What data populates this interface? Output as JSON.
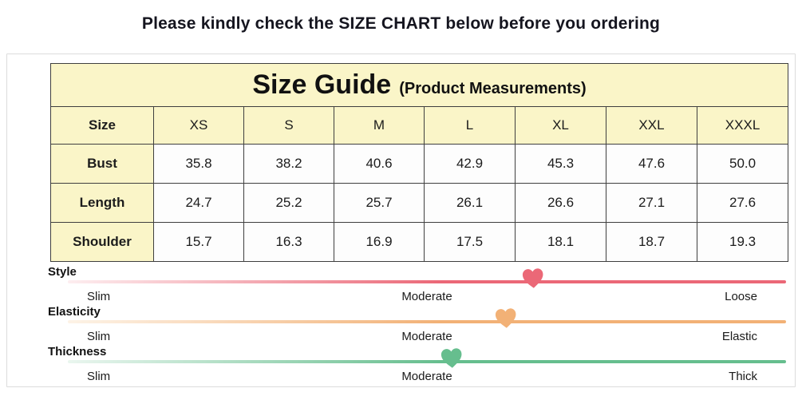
{
  "page": {
    "notice": "Please kindly check the SIZE CHART below before you ordering"
  },
  "size_table": {
    "title": "Size Guide",
    "subtitle": "(Product Measurements)",
    "header_bg": "#faf5c8",
    "columns": [
      "Size",
      "XS",
      "S",
      "M",
      "L",
      "XL",
      "XXL",
      "XXXL"
    ],
    "rows": [
      {
        "label": "Bust",
        "values": [
          "35.8",
          "38.2",
          "40.6",
          "42.9",
          "45.3",
          "47.6",
          "50.0"
        ]
      },
      {
        "label": "Length",
        "values": [
          "24.7",
          "25.2",
          "25.7",
          "26.1",
          "26.6",
          "27.1",
          "27.6"
        ]
      },
      {
        "label": "Shoulder",
        "values": [
          "15.7",
          "16.3",
          "16.9",
          "17.5",
          "18.1",
          "18.7",
          "19.3"
        ]
      }
    ]
  },
  "chart_data": {
    "type": "scatter",
    "title": "Attribute scales",
    "series": [
      {
        "name": "Style",
        "scale": [
          "Slim",
          "Moderate",
          "Loose"
        ],
        "marker_percent": 64.8
      },
      {
        "name": "Elasticity",
        "scale": [
          "Slim",
          "Moderate",
          "Elastic"
        ],
        "marker_percent": 61.0
      },
      {
        "name": "Thickness",
        "scale": [
          "Slim",
          "Moderate",
          "Thick"
        ],
        "marker_percent": 53.4
      }
    ]
  },
  "attribute_scales": [
    {
      "name": "Style",
      "left": "Slim",
      "middle": "Moderate",
      "right": "Loose",
      "color": "#eb6877",
      "color_light": "#fdeef0",
      "marker_percent": 64.8
    },
    {
      "name": "Elasticity",
      "left": "Slim",
      "middle": "Moderate",
      "right": "Elastic",
      "color": "#f2b176",
      "color_light": "#fdf3e7",
      "marker_percent": 61.0
    },
    {
      "name": "Thickness",
      "left": "Slim",
      "middle": "Moderate",
      "right": "Thick",
      "color": "#66be8e",
      "color_light": "#eaf6ef",
      "marker_percent": 53.4
    }
  ]
}
